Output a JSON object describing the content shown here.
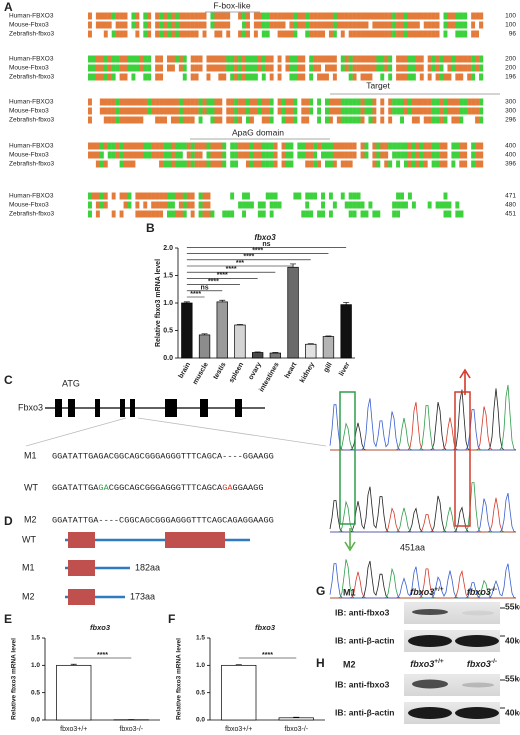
{
  "panel_labels": [
    "A",
    "B",
    "C",
    "D",
    "E",
    "F",
    "G",
    "H"
  ],
  "alignment": {
    "domain_labels": [
      "F-box-like",
      "Target",
      "ApaG domain"
    ],
    "blocks": [
      {
        "rows": [
          {
            "name": "Human-FBXO3",
            "end": 100
          },
          {
            "name": "Mouse-Fbxo3",
            "end": 100
          },
          {
            "name": "Zebrafish-fbxo3",
            "end": 96
          }
        ]
      },
      {
        "rows": [
          {
            "name": "Human-FBXO3",
            "end": 200
          },
          {
            "name": "Mouse-Fbxo3",
            "end": 200
          },
          {
            "name": "Zebrafish-fbxo3",
            "end": 196
          }
        ]
      },
      {
        "rows": [
          {
            "name": "Human-FBXO3",
            "end": 300
          },
          {
            "name": "Mouse-Fbxo3",
            "end": 300
          },
          {
            "name": "Zebrafish-fbxo3",
            "end": 296
          }
        ]
      },
      {
        "rows": [
          {
            "name": "Human-FBXO3",
            "end": 400
          },
          {
            "name": "Mouse-Fbxo3",
            "end": 400
          },
          {
            "name": "Zebrafish-fbxo3",
            "end": 396
          }
        ]
      },
      {
        "rows": [
          {
            "name": "Human-FBXO3",
            "end": 471
          },
          {
            "name": "Mouse-Fbxo3",
            "end": 480
          },
          {
            "name": "Zebrafish-fbxo3",
            "end": 451
          }
        ]
      }
    ]
  },
  "gene": {
    "start_codon": "ATG",
    "name": "Fbxo3"
  },
  "sequences": {
    "M1": {
      "label": "M1",
      "seq": "GGATATTGAGACGGCAGCGGGAGGGTTTCAGCA----GGAAGG"
    },
    "WT": {
      "label": "WT",
      "parts": [
        "GGATATTGA",
        "GA",
        "CGGCAGCGGGAGGGTTTCAGCA",
        "GA",
        "GGAAGG"
      ]
    },
    "M2": {
      "label": "M2",
      "seq": "GGATATTGA----CGGCAGCGGGAGGGTTTCAGCAGAGGAAGG"
    }
  },
  "proteins": [
    {
      "label": "WT",
      "length": "451aa"
    },
    {
      "label": "M1",
      "length": "182aa"
    },
    {
      "label": "M2",
      "length": "173aa"
    }
  ],
  "blots": [
    {
      "mutant": "M1",
      "gene": "fbxo3",
      "genotypes": [
        "+/+",
        "-/-"
      ],
      "rows": [
        "IB: anti-fbxo3",
        "IB: anti-β-actin"
      ],
      "markers": [
        "55kd",
        "40kd"
      ]
    },
    {
      "mutant": "M2",
      "gene": "fbxo3",
      "genotypes": [
        "+/+",
        "-/-"
      ],
      "rows": [
        "IB: anti-fbxo3",
        "IB: anti-β-actin"
      ],
      "markers": [
        "55kd",
        "40kd"
      ]
    }
  ],
  "chart_data": [
    {
      "type": "bar",
      "title": "fbxo3",
      "y_label": "Relative fbxo3 mRNA level",
      "categories": [
        "brain",
        "muscle",
        "testis",
        "spleen",
        "ovary",
        "intestines",
        "heart",
        "kidney",
        "gill",
        "liver"
      ],
      "values": [
        1.0,
        0.42,
        1.02,
        0.6,
        0.1,
        0.09,
        1.65,
        0.25,
        0.39,
        0.97
      ],
      "errors": [
        0.02,
        0.02,
        0.03,
        0.01,
        0.01,
        0.01,
        0.06,
        0.01,
        0.01,
        0.04
      ],
      "colors": [
        "#111111",
        "#8c8c8c",
        "#9a9a9a",
        "#d4d4d4",
        "#4a4a4a",
        "#7a7a7a",
        "#6a6a6a",
        "#e2e2e2",
        "#b4b4b4",
        "#111111"
      ],
      "significance": [
        "****",
        "ns",
        "****",
        "****",
        "****",
        "***",
        "****",
        "****",
        "ns"
      ],
      "ylim": [
        0,
        2
      ],
      "yticks": [
        {
          "value": 0,
          "label": "0.0"
        },
        {
          "value": 0.5,
          "label": "0.5"
        },
        {
          "value": 1,
          "label": "1.0"
        },
        {
          "value": 1.5,
          "label": "1.5"
        },
        {
          "value": 2,
          "label": "2.0"
        }
      ]
    },
    {
      "type": "bar",
      "title": "fbxo3",
      "y_label": "Relative fbxo3 mRNA level",
      "categories": [
        "fbxo3+/+",
        "fbxo3-/-"
      ],
      "values": [
        1.0,
        0.005
      ],
      "errors": [
        0.02,
        0.002
      ],
      "colors": [
        "#ffffff",
        "#ffffff"
      ],
      "significance": [
        "****"
      ],
      "ylim": [
        0,
        1.5
      ],
      "yticks": [
        {
          "value": 0,
          "label": "0.0"
        },
        {
          "value": 0.5,
          "label": "0.5"
        },
        {
          "value": 1,
          "label": "1.0"
        },
        {
          "value": 1.5,
          "label": "1.5"
        }
      ]
    },
    {
      "type": "bar",
      "title": "fbxo3",
      "y_label": "Relative fbxo3 mRNA level",
      "categories": [
        "fbxo3+/+",
        "fbxo3-/-"
      ],
      "values": [
        1.0,
        0.04
      ],
      "errors": [
        0.01,
        0.01
      ],
      "colors": [
        "#ffffff",
        "#ffffff"
      ],
      "significance": [
        "****"
      ],
      "ylim": [
        0,
        1.5
      ],
      "yticks": [
        {
          "value": 0,
          "label": "0.0"
        },
        {
          "value": 0.5,
          "label": "0.5"
        },
        {
          "value": 1,
          "label": "1.0"
        },
        {
          "value": 1.5,
          "label": "1.5"
        }
      ]
    }
  ]
}
